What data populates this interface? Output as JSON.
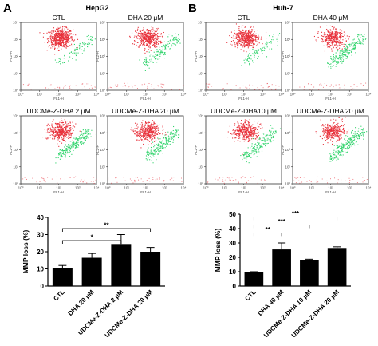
{
  "panels": {
    "A": {
      "letter": "A",
      "cell_line": "HepG2",
      "flow_titles": [
        "CTL",
        "DHA 20 μM",
        "UDCMe-Z-DHA 2 μM",
        "UDCMe-Z-DHA 20 μM"
      ],
      "bar": {
        "ylabel": "MMP loss (%)",
        "yticks": [
          "0",
          "10",
          "20",
          "30",
          "40"
        ],
        "categories": [
          "CTL",
          "DHA 20 μM",
          "UDCMe-Z-DHA 2 μM",
          "UDCMe-Z-DHA 20 μM"
        ],
        "sig": [
          "*",
          "**"
        ]
      }
    },
    "B": {
      "letter": "B",
      "cell_line": "Huh-7",
      "flow_titles": [
        "CTL",
        "DHA 40 μM",
        "UDCMe-Z-DHA10 μM",
        "UDCMe-Z-DHA 20 μM"
      ],
      "bar": {
        "ylabel": "MMP loss (%)",
        "yticks": [
          "0",
          "10",
          "20",
          "30",
          "40",
          "50"
        ],
        "categories": [
          "CTL",
          "DHA 40 μM",
          "UDCMe-Z-DHA 10 μM",
          "UDCMe-Z-DHA 20 μM"
        ],
        "sig": [
          "**",
          "***",
          "***"
        ]
      }
    }
  },
  "flow_axes": {
    "xlabel": "FL1-H",
    "ylabel": "FL2-H",
    "ticks": [
      "10⁰",
      "10¹",
      "10²",
      "10³",
      "10⁴"
    ]
  },
  "colors": {
    "red_population": "#e8303a",
    "green_population": "#2fd36b",
    "bar_fill": "#000000"
  },
  "chart_data": [
    {
      "type": "bar",
      "title": "",
      "ylabel": "MMP loss (%)",
      "ylim": [
        0,
        40
      ],
      "categories": [
        "CTL",
        "DHA 20 μM",
        "UDCMe-Z-DHA 2 μM",
        "UDCMe-Z-DHA 20 μM"
      ],
      "values": [
        10.5,
        16.5,
        24.5,
        20
      ],
      "errors": [
        1.5,
        2.5,
        5.5,
        2.5
      ]
    },
    {
      "type": "bar",
      "title": "",
      "ylabel": "MMP loss (%)",
      "ylim": [
        0,
        50
      ],
      "categories": [
        "CTL",
        "DHA 40 μM",
        "UDCMe-Z-DHA 10 μM",
        "UDCMe-Z-DHA 20 μM"
      ],
      "values": [
        9.5,
        25.5,
        18,
        26.5
      ],
      "errors": [
        0.5,
        4.5,
        0.7,
        0.8
      ]
    },
    {
      "type": "scatter",
      "title": "",
      "xlabel": "FL1-H",
      "ylabel": "FL2-H",
      "log_scale": true,
      "xlim": [
        1,
        10000
      ],
      "ylim": [
        1,
        10000
      ],
      "panels": [
        "CTL",
        "DHA 20 μM",
        "UDCMe-Z-DHA 2 μM",
        "UDCMe-Z-DHA 20 μM",
        "CTL",
        "DHA 40 μM",
        "UDCMe-Z-DHA10 μM",
        "UDCMe-Z-DHA 20 μM"
      ]
    }
  ]
}
